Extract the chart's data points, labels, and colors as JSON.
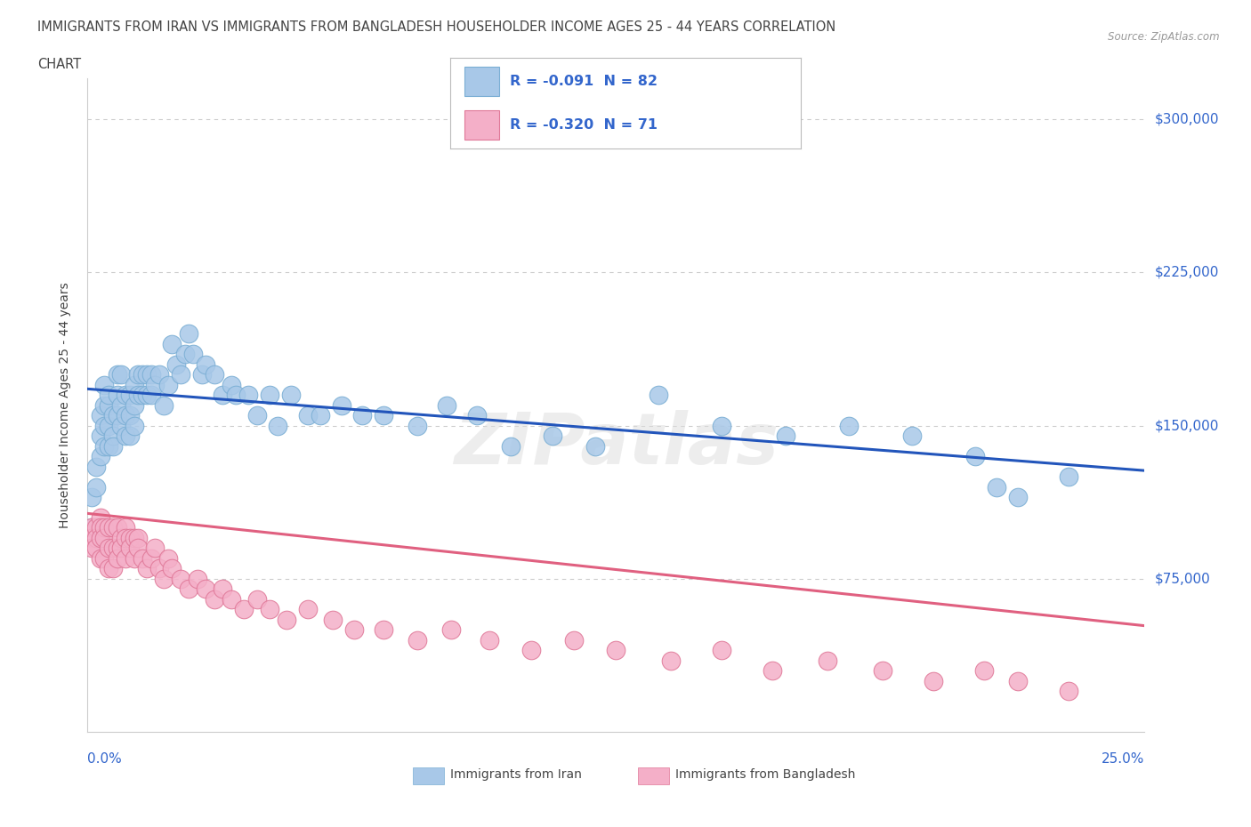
{
  "title_line1": "IMMIGRANTS FROM IRAN VS IMMIGRANTS FROM BANGLADESH HOUSEHOLDER INCOME AGES 25 - 44 YEARS CORRELATION",
  "title_line2": "CHART",
  "source_text": "Source: ZipAtlas.com",
  "ylabel": "Householder Income Ages 25 - 44 years",
  "iran_color": "#a8c8e8",
  "iran_edge_color": "#7aaed4",
  "bangladesh_color": "#f4afc8",
  "bangladesh_edge_color": "#e07898",
  "iran_line_color": "#2255bb",
  "bangladesh_line_color": "#e06080",
  "title_color": "#444444",
  "blue_color": "#3366cc",
  "grid_color": "#cccccc",
  "background_color": "#ffffff",
  "iran_scatter_x": [
    0.001,
    0.001,
    0.002,
    0.002,
    0.003,
    0.003,
    0.003,
    0.004,
    0.004,
    0.004,
    0.004,
    0.005,
    0.005,
    0.005,
    0.005,
    0.006,
    0.006,
    0.006,
    0.007,
    0.007,
    0.007,
    0.008,
    0.008,
    0.008,
    0.009,
    0.009,
    0.009,
    0.01,
    0.01,
    0.01,
    0.011,
    0.011,
    0.011,
    0.012,
    0.012,
    0.013,
    0.013,
    0.014,
    0.014,
    0.015,
    0.015,
    0.016,
    0.017,
    0.018,
    0.019,
    0.02,
    0.021,
    0.022,
    0.023,
    0.024,
    0.025,
    0.027,
    0.028,
    0.03,
    0.032,
    0.034,
    0.035,
    0.038,
    0.04,
    0.043,
    0.045,
    0.048,
    0.052,
    0.055,
    0.06,
    0.065,
    0.07,
    0.078,
    0.085,
    0.092,
    0.1,
    0.11,
    0.12,
    0.135,
    0.15,
    0.165,
    0.18,
    0.195,
    0.21,
    0.215,
    0.22,
    0.232
  ],
  "iran_scatter_y": [
    115000,
    100000,
    130000,
    120000,
    155000,
    145000,
    135000,
    160000,
    170000,
    150000,
    140000,
    160000,
    150000,
    140000,
    165000,
    155000,
    145000,
    140000,
    165000,
    155000,
    175000,
    175000,
    160000,
    150000,
    165000,
    155000,
    145000,
    165000,
    155000,
    145000,
    170000,
    160000,
    150000,
    175000,
    165000,
    175000,
    165000,
    175000,
    165000,
    175000,
    165000,
    170000,
    175000,
    160000,
    170000,
    190000,
    180000,
    175000,
    185000,
    195000,
    185000,
    175000,
    180000,
    175000,
    165000,
    170000,
    165000,
    165000,
    155000,
    165000,
    150000,
    165000,
    155000,
    155000,
    160000,
    155000,
    155000,
    150000,
    160000,
    155000,
    140000,
    145000,
    140000,
    165000,
    150000,
    145000,
    150000,
    145000,
    135000,
    120000,
    115000,
    125000
  ],
  "bangladesh_scatter_x": [
    0.001,
    0.001,
    0.001,
    0.002,
    0.002,
    0.002,
    0.003,
    0.003,
    0.003,
    0.003,
    0.004,
    0.004,
    0.004,
    0.005,
    0.005,
    0.005,
    0.006,
    0.006,
    0.006,
    0.007,
    0.007,
    0.007,
    0.008,
    0.008,
    0.009,
    0.009,
    0.009,
    0.01,
    0.01,
    0.011,
    0.011,
    0.012,
    0.012,
    0.013,
    0.014,
    0.015,
    0.016,
    0.017,
    0.018,
    0.019,
    0.02,
    0.022,
    0.024,
    0.026,
    0.028,
    0.03,
    0.032,
    0.034,
    0.037,
    0.04,
    0.043,
    0.047,
    0.052,
    0.058,
    0.063,
    0.07,
    0.078,
    0.086,
    0.095,
    0.105,
    0.115,
    0.125,
    0.138,
    0.15,
    0.162,
    0.175,
    0.188,
    0.2,
    0.212,
    0.22,
    0.232
  ],
  "bangladesh_scatter_y": [
    100000,
    95000,
    90000,
    100000,
    95000,
    90000,
    105000,
    100000,
    95000,
    85000,
    100000,
    95000,
    85000,
    100000,
    90000,
    80000,
    100000,
    90000,
    80000,
    100000,
    90000,
    85000,
    95000,
    90000,
    100000,
    95000,
    85000,
    95000,
    90000,
    95000,
    85000,
    95000,
    90000,
    85000,
    80000,
    85000,
    90000,
    80000,
    75000,
    85000,
    80000,
    75000,
    70000,
    75000,
    70000,
    65000,
    70000,
    65000,
    60000,
    65000,
    60000,
    55000,
    60000,
    55000,
    50000,
    50000,
    45000,
    50000,
    45000,
    40000,
    45000,
    40000,
    35000,
    40000,
    30000,
    35000,
    30000,
    25000,
    30000,
    25000,
    20000
  ],
  "xlim": [
    0.0,
    0.25
  ],
  "ylim": [
    0,
    320000
  ],
  "yticks": [
    0,
    75000,
    150000,
    225000,
    300000
  ],
  "ytick_right_labels": {
    "75000": "$75,000",
    "150000": "$150,000",
    "225000": "$225,000",
    "300000": "$300,000"
  },
  "iran_trendline_x": [
    0.0,
    0.25
  ],
  "iran_trendline_y": [
    168000,
    128000
  ],
  "bangladesh_trendline_x": [
    0.0,
    0.25
  ],
  "bangladesh_trendline_y": [
    107000,
    52000
  ]
}
